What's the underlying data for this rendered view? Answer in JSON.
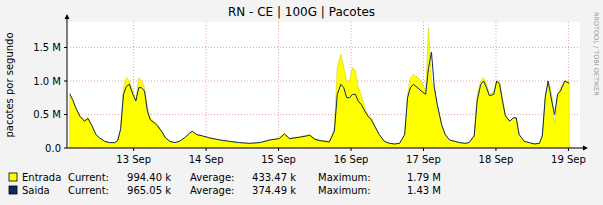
{
  "chart_data": {
    "type": "area",
    "title": "RN - CE | 100G | Pacotes",
    "y_label": "pacotes por segundo",
    "watermark": "RRDTOOL / TOBI OETIKER",
    "grid": true,
    "legend": "bottom",
    "xlim": [
      12.08,
      19.16
    ],
    "xticks": [
      {
        "value": 13,
        "label": "13 Sep"
      },
      {
        "value": 14,
        "label": "14 Sep"
      },
      {
        "value": 15,
        "label": "15 Sep"
      },
      {
        "value": 16,
        "label": "16 Sep"
      },
      {
        "value": 17,
        "label": "17 Sep"
      },
      {
        "value": 18,
        "label": "18 Sep"
      },
      {
        "value": 19,
        "label": "19 Sep"
      }
    ],
    "ylim": [
      0,
      1880000
    ],
    "yticks": [
      {
        "value": 0,
        "label": "0.0"
      },
      {
        "value": 500000,
        "label": "0.5 M"
      },
      {
        "value": 1000000,
        "label": "1.0 M"
      },
      {
        "value": 1500000,
        "label": "1.5 M"
      }
    ],
    "x": [
      12.12,
      12.16,
      12.2,
      12.26,
      12.32,
      12.37,
      12.42,
      12.48,
      12.53,
      12.6,
      12.67,
      12.74,
      12.78,
      12.82,
      12.86,
      12.9,
      12.94,
      12.99,
      13.03,
      13.07,
      13.11,
      13.15,
      13.19,
      13.23,
      13.28,
      13.33,
      13.39,
      13.44,
      13.5,
      13.57,
      13.63,
      13.7,
      13.77,
      13.81,
      13.87,
      13.95,
      14.05,
      14.19,
      14.32,
      14.46,
      14.6,
      14.74,
      14.88,
      15.01,
      15.08,
      15.15,
      15.29,
      15.43,
      15.5,
      15.57,
      15.7,
      15.77,
      15.81,
      15.86,
      15.9,
      15.94,
      15.98,
      16.02,
      16.06,
      16.1,
      16.14,
      16.19,
      16.23,
      16.28,
      16.34,
      16.39,
      16.46,
      16.53,
      16.6,
      16.67,
      16.74,
      16.78,
      16.82,
      16.86,
      16.92,
      16.97,
      17.03,
      17.07,
      17.11,
      17.15,
      17.19,
      17.25,
      17.3,
      17.36,
      17.43,
      17.5,
      17.57,
      17.63,
      17.7,
      17.74,
      17.79,
      17.83,
      17.87,
      17.91,
      17.97,
      18.01,
      18.05,
      18.09,
      18.13,
      18.19,
      18.24,
      18.28,
      18.32,
      18.39,
      18.46,
      18.53,
      18.6,
      18.64,
      18.68,
      18.72,
      18.77,
      18.81,
      18.85,
      18.89,
      18.95,
      19.01
    ],
    "series": [
      {
        "name": "Entrada",
        "type": "area",
        "color": "#ffff00",
        "stats": [
          {
            "name": "Current:",
            "value": 994400,
            "label": "994.40 k"
          },
          {
            "name": "Average:",
            "value": 433470,
            "label": "433.47 k"
          },
          {
            "name": "Maximum:",
            "value": 1790000,
            "label": "1.79 M"
          }
        ],
        "values": [
          820000,
          700000,
          600000,
          480000,
          420000,
          450000,
          350000,
          200000,
          150000,
          100000,
          80000,
          80000,
          120000,
          300000,
          900000,
          1050000,
          1000000,
          850000,
          700000,
          1050000,
          1000000,
          900000,
          600000,
          450000,
          400000,
          350000,
          250000,
          150000,
          100000,
          80000,
          100000,
          150000,
          220000,
          250000,
          200000,
          180000,
          150000,
          120000,
          100000,
          80000,
          70000,
          80000,
          120000,
          150000,
          220000,
          150000,
          170000,
          200000,
          140000,
          120000,
          100000,
          300000,
          1200000,
          1400000,
          1200000,
          1000000,
          1000000,
          1200000,
          1150000,
          900000,
          800000,
          600000,
          500000,
          450000,
          300000,
          200000,
          100000,
          70000,
          60000,
          70000,
          200000,
          800000,
          1050000,
          1100000,
          1050000,
          1000000,
          850000,
          1790000,
          1000000,
          900000,
          650000,
          350000,
          200000,
          120000,
          100000,
          80000,
          70000,
          80000,
          200000,
          800000,
          1000000,
          1050000,
          950000,
          800000,
          850000,
          1000000,
          1000000,
          750000,
          500000,
          400000,
          450000,
          450000,
          200000,
          100000,
          80000,
          60000,
          70000,
          200000,
          800000,
          1000000,
          800000,
          350000,
          800000,
          900000,
          1000000,
          994400
        ]
      },
      {
        "name": "Saida",
        "type": "line",
        "color": "#0c2a5c",
        "stats": [
          {
            "name": "Current:",
            "value": 965050,
            "label": "965.05 k"
          },
          {
            "name": "Average:",
            "value": 374490,
            "label": "374.49 k"
          },
          {
            "name": "Maximum:",
            "value": 1430000,
            "label": "1.43 M"
          }
        ],
        "values": [
          800000,
          720000,
          600000,
          470000,
          400000,
          440000,
          340000,
          200000,
          150000,
          100000,
          80000,
          80000,
          110000,
          280000,
          800000,
          920000,
          950000,
          800000,
          700000,
          900000,
          900000,
          850000,
          550000,
          420000,
          380000,
          330000,
          240000,
          150000,
          100000,
          80000,
          100000,
          150000,
          220000,
          250000,
          200000,
          180000,
          150000,
          120000,
          100000,
          80000,
          70000,
          80000,
          120000,
          140000,
          210000,
          140000,
          160000,
          190000,
          130000,
          110000,
          90000,
          250000,
          800000,
          950000,
          900000,
          750000,
          750000,
          800000,
          800000,
          700000,
          650000,
          550000,
          480000,
          420000,
          300000,
          200000,
          100000,
          70000,
          60000,
          70000,
          200000,
          750000,
          900000,
          950000,
          900000,
          850000,
          800000,
          1200000,
          1430000,
          900000,
          650000,
          350000,
          200000,
          120000,
          100000,
          80000,
          70000,
          80000,
          180000,
          700000,
          950000,
          1000000,
          900000,
          780000,
          800000,
          1000000,
          950000,
          700000,
          480000,
          400000,
          450000,
          450000,
          200000,
          100000,
          80000,
          60000,
          70000,
          180000,
          750000,
          1000000,
          700000,
          500000,
          800000,
          850000,
          1000000,
          965050
        ]
      }
    ]
  }
}
